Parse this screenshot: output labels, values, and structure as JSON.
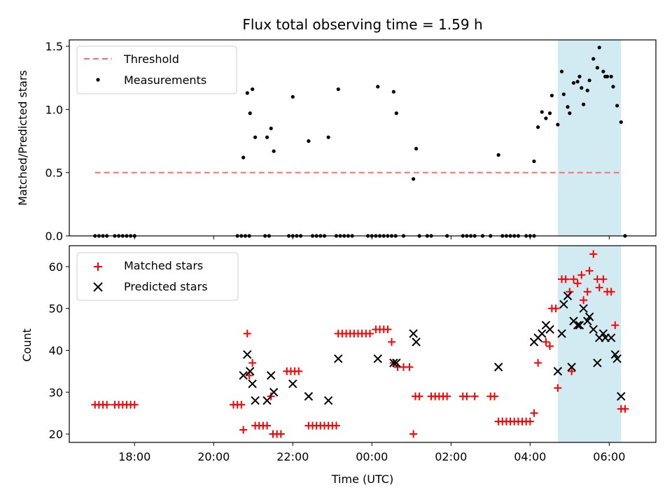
{
  "chart_data": {
    "type": "scatter",
    "title": "Flux total observing time = 1.59 h",
    "xlabel": "Time (UTC)",
    "x_unit": "hours since 17:00 UTC",
    "x_range": [
      -0.65,
      14.18
    ],
    "x_tick_values": [
      1,
      3,
      5,
      7,
      9,
      11,
      13
    ],
    "x_tick_labels": [
      "18:00",
      "20:00",
      "22:00",
      "00:00",
      "02:00",
      "04:00",
      "06:00"
    ],
    "shade_color": "#add8e6",
    "top": {
      "ylabel": "Matched/Predicted stars",
      "ylim": [
        0,
        1.55
      ],
      "y_ticks": [
        "0.0",
        "0.5",
        "1.0",
        "1.5"
      ],
      "y_tick_values": [
        0.0,
        0.5,
        1.0,
        1.5
      ],
      "threshold": {
        "name": "Threshold",
        "value": 0.5,
        "x_start": 0.0,
        "x_end": 13.3,
        "color": "#ff6b6b"
      },
      "shaded_region": [
        11.7,
        13.3
      ],
      "series": [
        {
          "name": "Measurements",
          "color": "#000000",
          "points": [
            [
              0.0,
              0
            ],
            [
              0.1,
              0
            ],
            [
              0.2,
              0
            ],
            [
              0.3,
              0
            ],
            [
              0.5,
              0
            ],
            [
              0.6,
              0
            ],
            [
              0.7,
              0
            ],
            [
              0.8,
              0
            ],
            [
              0.9,
              0
            ],
            [
              1.0,
              0
            ],
            [
              3.6,
              0
            ],
            [
              3.7,
              0
            ],
            [
              3.8,
              0
            ],
            [
              3.9,
              0
            ],
            [
              4.3,
              0
            ],
            [
              4.4,
              0
            ],
            [
              4.9,
              0
            ],
            [
              5.0,
              0
            ],
            [
              5.1,
              0
            ],
            [
              5.2,
              0
            ],
            [
              5.5,
              0
            ],
            [
              5.6,
              0
            ],
            [
              5.7,
              0
            ],
            [
              5.8,
              0
            ],
            [
              6.1,
              0
            ],
            [
              6.2,
              0
            ],
            [
              6.3,
              0
            ],
            [
              6.4,
              0
            ],
            [
              6.5,
              0
            ],
            [
              6.9,
              0
            ],
            [
              7.0,
              0
            ],
            [
              7.1,
              0
            ],
            [
              7.2,
              0
            ],
            [
              7.3,
              0
            ],
            [
              7.4,
              0
            ],
            [
              7.5,
              0
            ],
            [
              7.6,
              0
            ],
            [
              7.8,
              0
            ],
            [
              8.2,
              0
            ],
            [
              8.4,
              0
            ],
            [
              8.5,
              0
            ],
            [
              8.9,
              0
            ],
            [
              9.3,
              0
            ],
            [
              9.4,
              0
            ],
            [
              9.5,
              0
            ],
            [
              9.6,
              0
            ],
            [
              9.8,
              0
            ],
            [
              10.0,
              0
            ],
            [
              10.3,
              0
            ],
            [
              10.4,
              0
            ],
            [
              10.5,
              0
            ],
            [
              10.6,
              0
            ],
            [
              10.7,
              0
            ],
            [
              10.9,
              0
            ],
            [
              11.0,
              0
            ],
            [
              11.1,
              0
            ],
            [
              13.4,
              0
            ],
            [
              3.75,
              0.62
            ],
            [
              3.85,
              1.13
            ],
            [
              3.92,
              0.97
            ],
            [
              3.98,
              1.16
            ],
            [
              4.05,
              0.78
            ],
            [
              4.35,
              0.78
            ],
            [
              4.45,
              0.85
            ],
            [
              4.52,
              0.67
            ],
            [
              5.0,
              1.1
            ],
            [
              5.4,
              0.75
            ],
            [
              5.9,
              0.78
            ],
            [
              6.15,
              1.16
            ],
            [
              7.15,
              1.18
            ],
            [
              7.55,
              1.14
            ],
            [
              7.62,
              0.97
            ],
            [
              8.05,
              0.45
            ],
            [
              8.12,
              0.69
            ],
            [
              10.2,
              0.64
            ],
            [
              11.1,
              0.59
            ],
            [
              11.2,
              0.86
            ],
            [
              11.3,
              0.98
            ],
            [
              11.4,
              0.93
            ],
            [
              11.5,
              0.97
            ],
            [
              11.55,
              1.11
            ],
            [
              11.7,
              0.88
            ],
            [
              11.8,
              1.3
            ],
            [
              11.85,
              1.12
            ],
            [
              11.95,
              1.02
            ],
            [
              12.0,
              0.97
            ],
            [
              12.1,
              1.21
            ],
            [
              12.2,
              1.22
            ],
            [
              12.25,
              1.26
            ],
            [
              12.3,
              1.17
            ],
            [
              12.35,
              1.04
            ],
            [
              12.45,
              1.15
            ],
            [
              12.5,
              1.23
            ],
            [
              12.6,
              1.4
            ],
            [
              12.7,
              1.33
            ],
            [
              12.75,
              1.49
            ],
            [
              12.85,
              1.3
            ],
            [
              12.9,
              1.26
            ],
            [
              12.95,
              1.26
            ],
            [
              13.05,
              1.26
            ],
            [
              13.1,
              1.18
            ],
            [
              13.2,
              1.03
            ],
            [
              13.3,
              0.9
            ]
          ]
        }
      ],
      "legend": {
        "position": "upper left",
        "entries": [
          "Threshold",
          "Measurements"
        ]
      }
    },
    "bottom": {
      "ylabel": "Count",
      "ylim": [
        18,
        65
      ],
      "y_ticks": [
        "20",
        "30",
        "40",
        "50",
        "60"
      ],
      "y_tick_values": [
        20,
        30,
        40,
        50,
        60
      ],
      "shaded_region": [
        11.7,
        13.3
      ],
      "series": [
        {
          "name": "Matched stars",
          "color": "#ff0000",
          "marker": "plus",
          "points": [
            [
              0.0,
              27
            ],
            [
              0.1,
              27
            ],
            [
              0.2,
              27
            ],
            [
              0.3,
              27
            ],
            [
              0.5,
              27
            ],
            [
              0.6,
              27
            ],
            [
              0.7,
              27
            ],
            [
              0.8,
              27
            ],
            [
              0.9,
              27
            ],
            [
              1.0,
              27
            ],
            [
              3.5,
              27
            ],
            [
              3.6,
              27
            ],
            [
              3.7,
              27
            ],
            [
              3.75,
              21
            ],
            [
              3.85,
              44
            ],
            [
              3.9,
              34
            ],
            [
              3.98,
              37
            ],
            [
              4.05,
              22
            ],
            [
              4.15,
              22
            ],
            [
              4.25,
              22
            ],
            [
              4.35,
              22
            ],
            [
              4.45,
              29
            ],
            [
              4.5,
              20
            ],
            [
              4.6,
              20
            ],
            [
              4.7,
              20
            ],
            [
              4.85,
              35
            ],
            [
              4.95,
              35
            ],
            [
              5.05,
              35
            ],
            [
              5.15,
              35
            ],
            [
              5.4,
              22
            ],
            [
              5.5,
              22
            ],
            [
              5.6,
              22
            ],
            [
              5.7,
              22
            ],
            [
              5.8,
              22
            ],
            [
              5.9,
              22
            ],
            [
              6.0,
              22
            ],
            [
              6.1,
              22
            ],
            [
              6.15,
              44
            ],
            [
              6.25,
              44
            ],
            [
              6.35,
              44
            ],
            [
              6.45,
              44
            ],
            [
              6.55,
              44
            ],
            [
              6.65,
              44
            ],
            [
              6.75,
              44
            ],
            [
              6.85,
              44
            ],
            [
              6.95,
              44
            ],
            [
              7.1,
              45
            ],
            [
              7.2,
              45
            ],
            [
              7.3,
              45
            ],
            [
              7.4,
              45
            ],
            [
              7.5,
              42
            ],
            [
              7.55,
              37
            ],
            [
              7.65,
              36
            ],
            [
              7.8,
              36
            ],
            [
              7.95,
              36
            ],
            [
              8.05,
              20
            ],
            [
              8.1,
              29
            ],
            [
              8.2,
              29
            ],
            [
              8.5,
              29
            ],
            [
              8.6,
              29
            ],
            [
              8.7,
              29
            ],
            [
              8.8,
              29
            ],
            [
              8.9,
              29
            ],
            [
              9.3,
              29
            ],
            [
              9.4,
              29
            ],
            [
              9.6,
              29
            ],
            [
              10.0,
              29
            ],
            [
              10.1,
              29
            ],
            [
              10.2,
              23
            ],
            [
              10.3,
              23
            ],
            [
              10.4,
              23
            ],
            [
              10.5,
              23
            ],
            [
              10.6,
              23
            ],
            [
              10.7,
              23
            ],
            [
              10.8,
              23
            ],
            [
              10.9,
              23
            ],
            [
              11.0,
              23
            ],
            [
              11.1,
              25
            ],
            [
              11.2,
              37
            ],
            [
              11.4,
              42
            ],
            [
              11.5,
              41
            ],
            [
              11.55,
              50
            ],
            [
              11.65,
              50
            ],
            [
              11.7,
              31
            ],
            [
              11.8,
              57
            ],
            [
              11.9,
              57
            ],
            [
              12.0,
              54
            ],
            [
              12.05,
              35
            ],
            [
              12.1,
              57
            ],
            [
              12.2,
              56
            ],
            [
              12.3,
              58
            ],
            [
              12.35,
              52
            ],
            [
              12.45,
              54
            ],
            [
              12.5,
              59
            ],
            [
              12.6,
              63
            ],
            [
              12.7,
              57
            ],
            [
              12.75,
              55
            ],
            [
              12.85,
              57
            ],
            [
              12.95,
              54
            ],
            [
              13.05,
              54
            ],
            [
              13.15,
              46
            ],
            [
              13.3,
              26
            ],
            [
              13.4,
              26
            ]
          ]
        },
        {
          "name": "Predicted stars",
          "color": "#000000",
          "marker": "x",
          "points": [
            [
              3.75,
              34
            ],
            [
              3.85,
              39
            ],
            [
              3.92,
              35
            ],
            [
              3.98,
              32
            ],
            [
              4.05,
              28
            ],
            [
              4.35,
              28
            ],
            [
              4.45,
              34
            ],
            [
              4.52,
              30
            ],
            [
              5.0,
              32
            ],
            [
              5.4,
              29
            ],
            [
              5.9,
              28
            ],
            [
              6.15,
              38
            ],
            [
              7.15,
              38
            ],
            [
              7.55,
              37
            ],
            [
              7.62,
              37
            ],
            [
              8.05,
              44
            ],
            [
              8.12,
              42
            ],
            [
              10.2,
              36
            ],
            [
              11.1,
              42
            ],
            [
              11.2,
              43
            ],
            [
              11.3,
              44
            ],
            [
              11.4,
              46
            ],
            [
              11.5,
              45
            ],
            [
              11.7,
              35
            ],
            [
              11.8,
              44
            ],
            [
              11.85,
              51
            ],
            [
              11.95,
              53
            ],
            [
              12.05,
              36
            ],
            [
              12.1,
              47
            ],
            [
              12.2,
              46
            ],
            [
              12.25,
              46
            ],
            [
              12.35,
              50
            ],
            [
              12.45,
              47
            ],
            [
              12.5,
              48
            ],
            [
              12.6,
              45
            ],
            [
              12.7,
              37
            ],
            [
              12.75,
              43
            ],
            [
              12.85,
              44
            ],
            [
              12.9,
              43
            ],
            [
              13.05,
              43
            ],
            [
              13.15,
              39
            ],
            [
              13.2,
              38
            ],
            [
              13.3,
              29
            ]
          ]
        }
      ],
      "legend": {
        "position": "upper left",
        "entries": [
          "Matched stars",
          "Predicted stars"
        ]
      }
    }
  }
}
